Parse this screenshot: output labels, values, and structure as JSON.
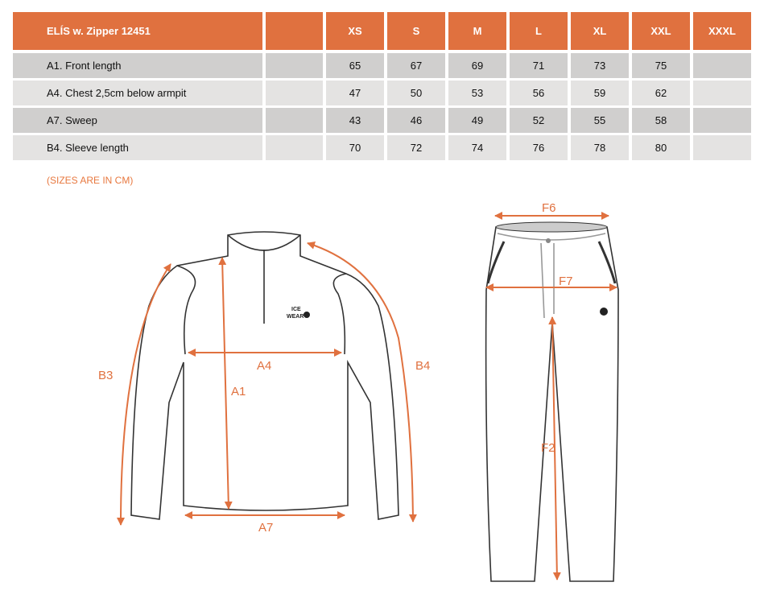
{
  "table": {
    "title": "ELÍS  w. Zipper 12451",
    "sizes": [
      "XS",
      "S",
      "M",
      "L",
      "XL",
      "XXL",
      "XXXL"
    ],
    "rows": [
      {
        "label": "A1. Front length",
        "values": [
          "65",
          "67",
          "69",
          "71",
          "73",
          "75",
          ""
        ]
      },
      {
        "label": "A4. Chest 2,5cm below armpit",
        "values": [
          "47",
          "50",
          "53",
          "56",
          "59",
          "62",
          ""
        ]
      },
      {
        "label": "A7. Sweep",
        "values": [
          "43",
          "46",
          "49",
          "52",
          "55",
          "58",
          ""
        ]
      },
      {
        "label": "B4. Sleeve length",
        "values": [
          "70",
          "72",
          "74",
          "76",
          "78",
          "80",
          ""
        ]
      }
    ]
  },
  "note": "(SIZES ARE IN CM)",
  "diagram": {
    "accent_color": "#e0713f",
    "jacket_labels": {
      "b3": "B3",
      "a4": "A4",
      "a1": "A1",
      "b4": "B4",
      "a7": "A7"
    },
    "pants_labels": {
      "f6": "F6",
      "f7": "F7",
      "f2": "F2"
    },
    "logo": "ICE WEAR"
  }
}
